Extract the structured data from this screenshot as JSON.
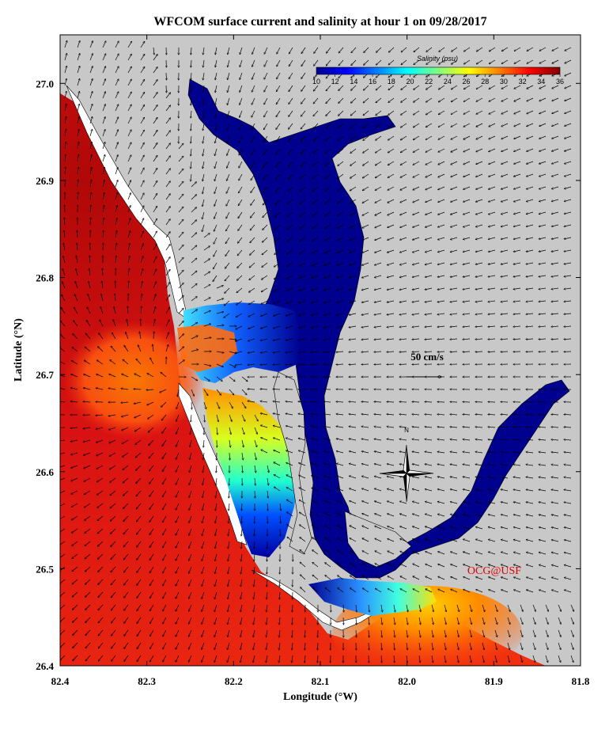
{
  "title": "WFCOM surface current and salinity at hour 1 on 09/28/2017",
  "x_axis": {
    "title": "Longitude (°W)",
    "ticks": [
      "82.4",
      "82.3",
      "82.2",
      "82.1",
      "82.0",
      "81.9",
      "81.8"
    ],
    "range": [
      82.4,
      81.8
    ]
  },
  "y_axis": {
    "title": "Latitude (°N)",
    "ticks": [
      "27.0",
      "26.9",
      "26.8",
      "26.7",
      "26.6",
      "26.5",
      "26.4"
    ],
    "range": [
      26.4,
      27.05
    ]
  },
  "colorbar": {
    "title": "Salinity (psu)",
    "ticks": [
      "10",
      "12",
      "14",
      "16",
      "18",
      "20",
      "22",
      "24",
      "26",
      "28",
      "30",
      "32",
      "34",
      "36"
    ],
    "range": [
      10,
      36
    ],
    "colors": [
      "#00008f",
      "#0000ff",
      "#0080ff",
      "#00ffff",
      "#80ff80",
      "#ffff00",
      "#ff8000",
      "#ff0000",
      "#800000"
    ]
  },
  "reference_vector": {
    "label": "50 cm/s"
  },
  "compass": {
    "label": "N"
  },
  "credit": "OCG@USF",
  "colors": {
    "land": "#c8c8c8",
    "ocean_high": "#d81010",
    "ocean_mid": "#ee3a14",
    "estuary_low": "#00008f",
    "credit": "#e00000"
  }
}
